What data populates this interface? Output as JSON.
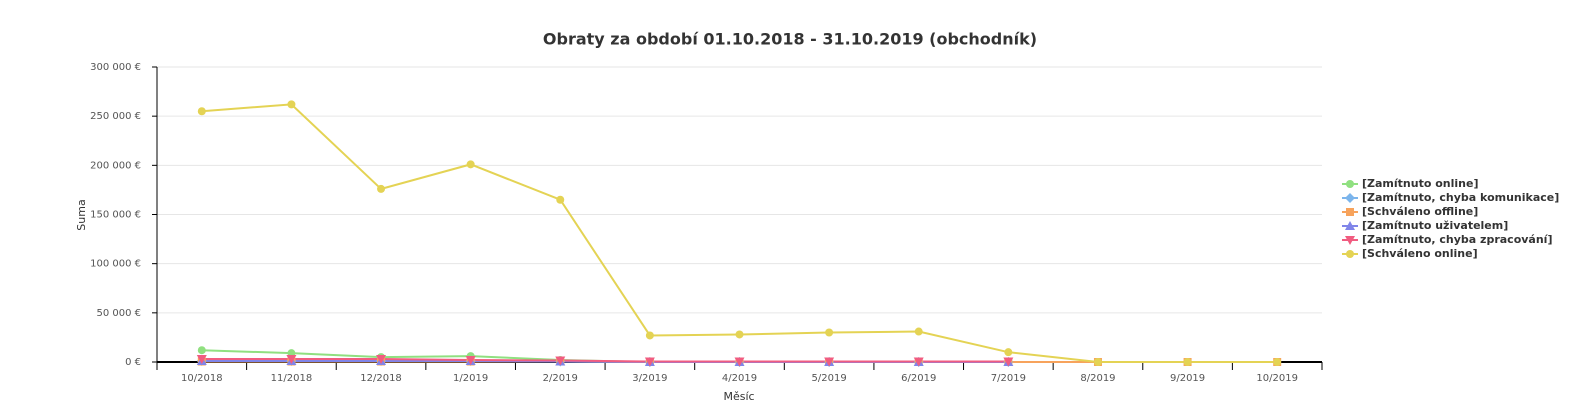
{
  "chart_data": {
    "type": "line",
    "title": "Obraty za období 01.10.2018 - 31.10.2019 (obchodník)",
    "x_label": "Měsíc",
    "y_label": "Suma",
    "categories": [
      "10/2018",
      "11/2018",
      "12/2018",
      "1/2019",
      "2/2019",
      "3/2019",
      "4/2019",
      "5/2019",
      "6/2019",
      "7/2019",
      "8/2019",
      "9/2019",
      "10/2019"
    ],
    "series": [
      {
        "name": "[Zamítnuto online]",
        "color": "#90e080",
        "marker": "circle",
        "values": [
          12000,
          9000,
          5000,
          6000,
          2000,
          0,
          0,
          0,
          0,
          0,
          null,
          null,
          null
        ]
      },
      {
        "name": "[Zamítnuto, chyba komunikace]",
        "color": "#7cb5ec",
        "marker": "diamond",
        "values": [
          1000,
          1000,
          1000,
          1000,
          500,
          0,
          0,
          0,
          0,
          0,
          null,
          null,
          null
        ]
      },
      {
        "name": "[Schváleno offline]",
        "color": "#f7a35c",
        "marker": "square",
        "values": [
          500,
          500,
          500,
          500,
          500,
          0,
          0,
          0,
          0,
          0,
          0,
          0,
          0
        ]
      },
      {
        "name": "[Zamítnuto uživatelem]",
        "color": "#8085e9",
        "marker": "triangle",
        "values": [
          1000,
          1000,
          1000,
          1000,
          500,
          0,
          0,
          0,
          0,
          0,
          null,
          null,
          null
        ]
      },
      {
        "name": "[Zamítnuto, chyba zpracování]",
        "color": "#f15c80",
        "marker": "triangle-down",
        "values": [
          3000,
          3000,
          3000,
          2000,
          1500,
          500,
          500,
          500,
          500,
          500,
          null,
          null,
          null
        ]
      },
      {
        "name": "[Schváleno online]",
        "color": "#e4d354",
        "marker": "circle",
        "values": [
          255000,
          262000,
          176000,
          201000,
          165000,
          27000,
          28000,
          30000,
          31000,
          10000,
          0,
          0,
          0
        ]
      }
    ],
    "ylim": [
      0,
      300000
    ],
    "yticks": [
      {
        "value": 0,
        "label": "0 €"
      },
      {
        "value": 50000,
        "label": "50 000 €"
      },
      {
        "value": 100000,
        "label": "100 000 €"
      },
      {
        "value": 150000,
        "label": "150 000 €"
      },
      {
        "value": 200000,
        "label": "200 000 €"
      },
      {
        "value": 250000,
        "label": "250 000 €"
      },
      {
        "value": 300000,
        "label": "300 000 €"
      }
    ],
    "grid": true,
    "legend": "right"
  }
}
